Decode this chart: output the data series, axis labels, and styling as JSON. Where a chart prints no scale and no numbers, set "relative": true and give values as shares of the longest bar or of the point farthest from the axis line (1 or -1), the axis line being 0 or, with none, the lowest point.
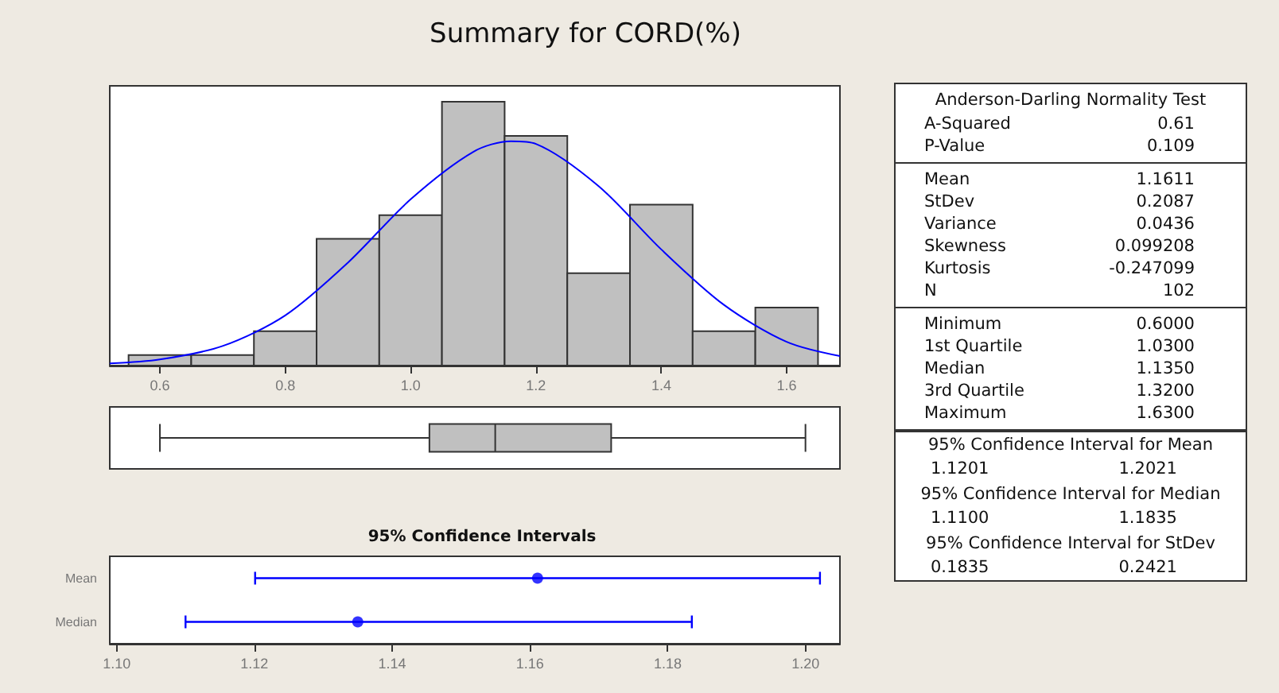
{
  "chart_data": [
    {
      "type": "histogram",
      "title": "Summary for CORD(%)",
      "relative": true,
      "tick_labels": "x",
      "xlim": [
        0.52,
        1.685
      ],
      "xticks": [
        0.6,
        0.8,
        {
          "value": 1,
          "label": "1.0"
        },
        1.2,
        1.4,
        1.6
      ],
      "series": [
        {
          "type": "histogram",
          "color": "#c0c0c0",
          "bins": [
            0.55,
            0.65,
            0.75,
            0.85,
            0.95,
            1.05,
            1.15,
            1.25,
            1.35,
            1.45,
            1.55,
            1.65
          ],
          "values": [
            0.04,
            0.04,
            0.13,
            0.48,
            0.57,
            1,
            0.87,
            0.35,
            0.61,
            0.13,
            0.22
          ]
        },
        {
          "type": "line",
          "color": "#0000ff",
          "x": [
            0.52,
            0.6,
            0.7,
            0.8,
            0.9,
            1.0,
            1.1,
            1.16,
            1.2,
            1.3,
            1.4,
            1.5,
            1.6,
            1.685
          ],
          "values": [
            0.008,
            0.023,
            0.074,
            0.19,
            0.39,
            0.63,
            0.81,
            0.85,
            0.84,
            0.68,
            0.44,
            0.23,
            0.09,
            0.036
          ]
        }
      ]
    },
    {
      "type": "box",
      "orientation": "horizontal",
      "color": "#c0c0c0",
      "tick_labels": false,
      "xlim": [
        0.52,
        1.685
      ],
      "categories": [
        null
      ],
      "boxes": [
        {
          "low": 0.6,
          "q1": 1.03,
          "median": 1.135,
          "q3": 1.32,
          "high": 1.63
        }
      ]
    },
    {
      "type": "scatter",
      "title": "95% Confidence Intervals",
      "orientation": "horizontal",
      "marker": "circle",
      "color": "#0000ff",
      "categories": [
        "Mean",
        "Median"
      ],
      "values": [
        1.1611,
        1.135
      ],
      "errors": [
        [
          1.1201,
          1.2021
        ],
        [
          1.11,
          1.1835
        ]
      ],
      "xlim": [
        1.099,
        1.205
      ],
      "xticks": [
        {
          "value": 1.1,
          "label": "1.10"
        },
        1.12,
        1.14,
        1.16,
        1.18,
        {
          "value": 1.2,
          "label": "1.20"
        }
      ]
    },
    {
      "type": "other",
      "title": "Anderson-Darling Normality Test",
      "annotations": [
        "A-Squared",
        "0.61",
        "P-Value",
        "0.109"
      ]
    },
    {
      "type": "other",
      "annotations": [
        "Mean",
        "1.1611",
        "StDev",
        "0.2087",
        "Variance",
        "0.0436",
        "Skewness",
        "0.099208",
        "Kurtosis",
        "-0.247099",
        "N",
        "102"
      ]
    },
    {
      "type": "other",
      "annotations": [
        "Minimum",
        "0.6000",
        "1st Quartile",
        "1.0300",
        "Median",
        "1.1350",
        "3rd Quartile",
        "1.3200",
        "Maximum",
        "1.6300"
      ]
    },
    {
      "type": "other",
      "title": "95% Confidence Interval for Mean",
      "annotations": [
        "1.1201",
        "1.2021"
      ]
    },
    {
      "type": "other",
      "title": "95% Confidence Interval for Median",
      "annotations": [
        "1.1100",
        "1.1835"
      ]
    },
    {
      "type": "other",
      "title": "95% Confidence Interval for StDev",
      "annotations": [
        "0.1835",
        "0.2421"
      ]
    }
  ]
}
